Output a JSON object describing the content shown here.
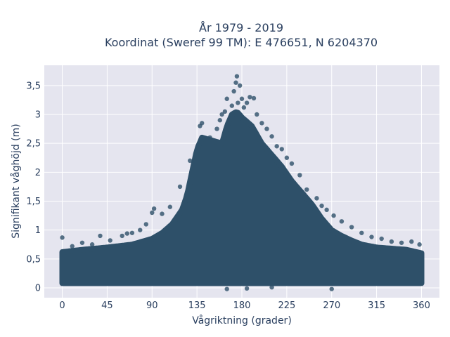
{
  "chart_data": {
    "type": "scatter",
    "title": "År 1979 - 2019",
    "subtitle": "Koordinat (Sweref 99 TM): E 476651, N 6204370",
    "xlabel": "Vågriktning (grader)",
    "ylabel": "Signifikant våghöjd (m)",
    "xlim": [
      -18,
      378
    ],
    "ylim": [
      -0.17,
      3.85
    ],
    "x_ticks": [
      0,
      45,
      90,
      135,
      180,
      225,
      270,
      315,
      360
    ],
    "x_tick_labels": [
      "0",
      "45",
      "90",
      "135",
      "180",
      "225",
      "270",
      "315",
      "360"
    ],
    "y_ticks": [
      0,
      0.5,
      1,
      1.5,
      2,
      2.5,
      3,
      3.5
    ],
    "y_tick_labels": [
      "0",
      "0,5",
      "1",
      "1,5",
      "2",
      "2,5",
      "3",
      "3,5"
    ],
    "grid": true,
    "series_color": "#2e5069",
    "background_color": "#e5e5ef",
    "upper_envelope": {
      "x": [
        0,
        20,
        45,
        70,
        90,
        100,
        110,
        120,
        125,
        130,
        135,
        140,
        150,
        160,
        165,
        170,
        175,
        180,
        190,
        200,
        210,
        220,
        230,
        240,
        250,
        260,
        270,
        280,
        290,
        300,
        315,
        330,
        345,
        360
      ],
      "y": [
        0.62,
        0.66,
        0.7,
        0.75,
        0.85,
        0.95,
        1.1,
        1.35,
        1.6,
        2.0,
        2.4,
        2.6,
        2.55,
        2.5,
        2.8,
        3.0,
        3.05,
        2.95,
        2.8,
        2.5,
        2.3,
        2.1,
        1.85,
        1.65,
        1.45,
        1.2,
        1.0,
        0.9,
        0.82,
        0.75,
        0.7,
        0.68,
        0.66,
        0.6
      ]
    },
    "lower_envelope": {
      "x": [
        0,
        360
      ],
      "y": [
        0.08,
        0.08
      ]
    },
    "outliers": [
      {
        "x": 0,
        "y": 0.87
      },
      {
        "x": 10,
        "y": 0.72
      },
      {
        "x": 20,
        "y": 0.78
      },
      {
        "x": 30,
        "y": 0.75
      },
      {
        "x": 38,
        "y": 0.9
      },
      {
        "x": 48,
        "y": 0.82
      },
      {
        "x": 60,
        "y": 0.9
      },
      {
        "x": 65,
        "y": 0.94
      },
      {
        "x": 70,
        "y": 0.95
      },
      {
        "x": 78,
        "y": 1.0
      },
      {
        "x": 84,
        "y": 1.1
      },
      {
        "x": 90,
        "y": 1.3
      },
      {
        "x": 92,
        "y": 1.37
      },
      {
        "x": 100,
        "y": 1.28
      },
      {
        "x": 108,
        "y": 1.4
      },
      {
        "x": 118,
        "y": 1.75
      },
      {
        "x": 128,
        "y": 2.2
      },
      {
        "x": 138,
        "y": 2.8
      },
      {
        "x": 140,
        "y": 2.85
      },
      {
        "x": 148,
        "y": 2.6
      },
      {
        "x": 155,
        "y": 2.75
      },
      {
        "x": 158,
        "y": 2.9
      },
      {
        "x": 160,
        "y": 3.0
      },
      {
        "x": 163,
        "y": 3.05
      },
      {
        "x": 165,
        "y": 3.27
      },
      {
        "x": 170,
        "y": 3.15
      },
      {
        "x": 172,
        "y": 3.4
      },
      {
        "x": 174,
        "y": 3.55
      },
      {
        "x": 175,
        "y": 3.66
      },
      {
        "x": 178,
        "y": 3.5
      },
      {
        "x": 176,
        "y": 3.2
      },
      {
        "x": 180,
        "y": 3.27
      },
      {
        "x": 182,
        "y": 3.12
      },
      {
        "x": 185,
        "y": 3.2
      },
      {
        "x": 188,
        "y": 3.3
      },
      {
        "x": 192,
        "y": 3.28
      },
      {
        "x": 195,
        "y": 3.0
      },
      {
        "x": 200,
        "y": 2.85
      },
      {
        "x": 205,
        "y": 2.75
      },
      {
        "x": 210,
        "y": 2.62
      },
      {
        "x": 215,
        "y": 2.45
      },
      {
        "x": 220,
        "y": 2.4
      },
      {
        "x": 225,
        "y": 2.25
      },
      {
        "x": 230,
        "y": 2.15
      },
      {
        "x": 238,
        "y": 1.95
      },
      {
        "x": 245,
        "y": 1.7
      },
      {
        "x": 255,
        "y": 1.55
      },
      {
        "x": 260,
        "y": 1.42
      },
      {
        "x": 265,
        "y": 1.35
      },
      {
        "x": 272,
        "y": 1.25
      },
      {
        "x": 280,
        "y": 1.15
      },
      {
        "x": 290,
        "y": 1.05
      },
      {
        "x": 300,
        "y": 0.95
      },
      {
        "x": 310,
        "y": 0.88
      },
      {
        "x": 320,
        "y": 0.85
      },
      {
        "x": 330,
        "y": 0.8
      },
      {
        "x": 340,
        "y": 0.78
      },
      {
        "x": 350,
        "y": 0.8
      },
      {
        "x": 358,
        "y": 0.75
      },
      {
        "x": 165,
        "y": -0.02
      },
      {
        "x": 185,
        "y": -0.01
      },
      {
        "x": 210,
        "y": 0.01
      },
      {
        "x": 270,
        "y": -0.02
      }
    ]
  }
}
